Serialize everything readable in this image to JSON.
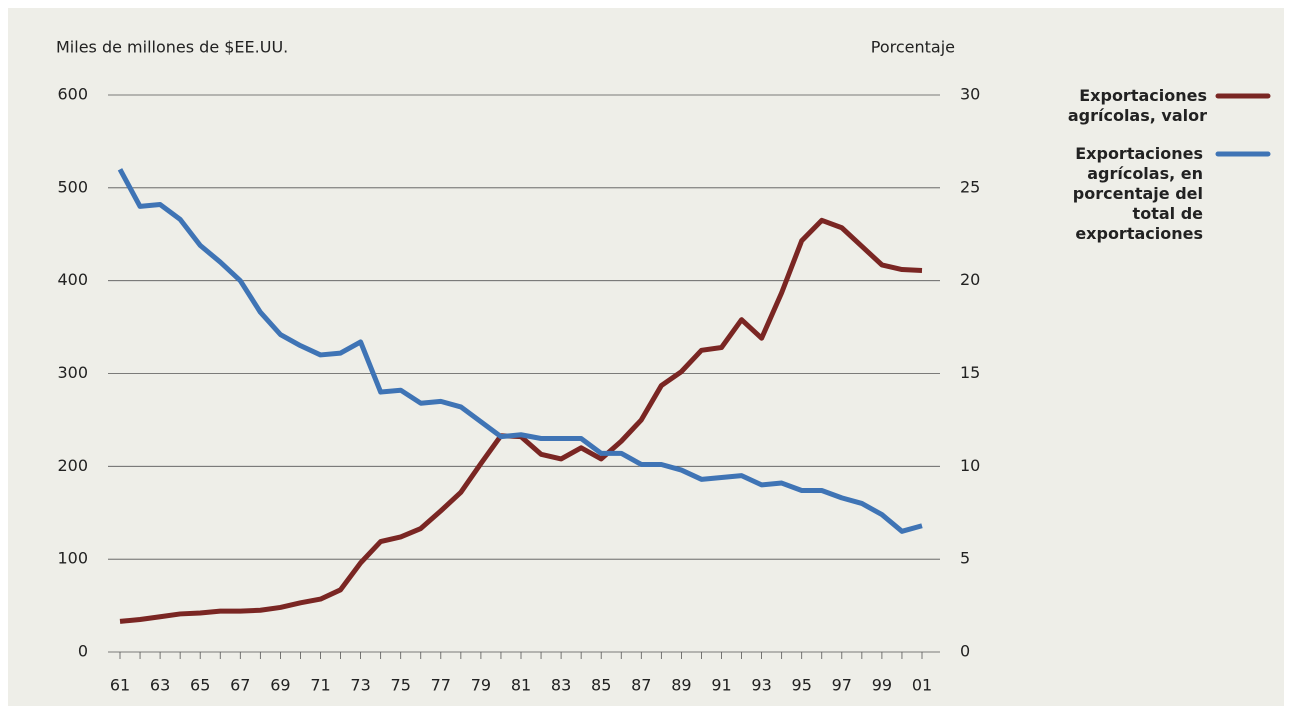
{
  "chart_data": {
    "type": "line",
    "y_label": "Miles de millones de $EE.UU.",
    "y2_label": "Porcentaje",
    "categories": [
      "61",
      null,
      "63",
      null,
      "65",
      null,
      "67",
      null,
      "69",
      null,
      "71",
      null,
      "73",
      null,
      "75",
      null,
      "77",
      null,
      "79",
      null,
      "81",
      null,
      "83",
      null,
      "85",
      null,
      "87",
      null,
      "89",
      null,
      "91",
      null,
      "93",
      null,
      "95",
      null,
      "97",
      null,
      "99",
      null,
      "01"
    ],
    "ylim": [
      0,
      600
    ],
    "yticks": [
      0,
      100,
      200,
      300,
      400,
      500,
      600
    ],
    "y2lim": [
      0,
      30
    ],
    "y2ticks": [
      0,
      5,
      10,
      15,
      20,
      25,
      30
    ],
    "grid": true,
    "legend": "right",
    "series": [
      {
        "name": "Exportaciones agrícolas, valor",
        "color": "#7a2623",
        "values": [
          33,
          35,
          38,
          41,
          42,
          44,
          44,
          45,
          48,
          53,
          57,
          67,
          96,
          119,
          124,
          133,
          152,
          172,
          203,
          233,
          232,
          213,
          208,
          220,
          208,
          227,
          250,
          287,
          302,
          325,
          328,
          358,
          338,
          387,
          443,
          465,
          457,
          437,
          417,
          412,
          411
        ]
      },
      {
        "name": "Exportaciones agrícolas, en porcentaje del total de exportaciones",
        "color": "#3f74b5",
        "axis": "y2",
        "values": [
          26.0,
          24.0,
          24.1,
          23.3,
          21.9,
          21.0,
          20.0,
          18.3,
          17.1,
          16.5,
          16.0,
          16.1,
          16.7,
          14.0,
          14.1,
          13.4,
          13.5,
          13.2,
          12.4,
          11.6,
          11.7,
          11.5,
          11.5,
          11.5,
          10.7,
          10.7,
          10.1,
          10.1,
          9.8,
          9.3,
          9.4,
          9.5,
          9.0,
          9.1,
          8.7,
          8.7,
          8.3,
          8.0,
          7.4,
          6.5,
          6.8
        ]
      }
    ]
  }
}
